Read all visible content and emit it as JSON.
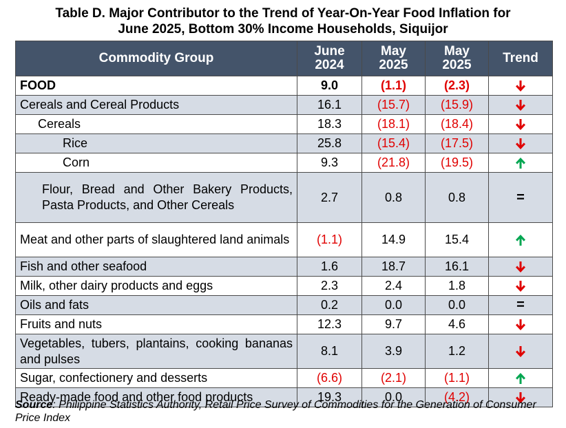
{
  "title_line1": "Table D. Major Contributor to the Trend of Year-On-Year Food Inflation for",
  "title_line2": "June 2025, Bottom 30% Income Households, Siquijor",
  "headers": {
    "group": "Commodity Group",
    "c1_line1": "June",
    "c1_line2": "2024",
    "c2_line1": "May",
    "c2_line2": "2025",
    "c3_line1": "May",
    "c3_line2": "2025",
    "trend": "Trend"
  },
  "rows": [
    {
      "label": "FOOD",
      "v1": "9.0",
      "v2": "(1.1)",
      "v3": "(2.3)",
      "trend": "down"
    },
    {
      "label": "Cereals and Cereal Products",
      "v1": "16.1",
      "v2": "(15.7)",
      "v3": "(15.9)",
      "trend": "down"
    },
    {
      "label": "Cereals",
      "v1": "18.3",
      "v2": "(18.1)",
      "v3": "(18.4)",
      "trend": "down"
    },
    {
      "label": "Rice",
      "v1": "25.8",
      "v2": "(15.4)",
      "v3": "(17.5)",
      "trend": "down"
    },
    {
      "label": "Corn",
      "v1": "9.3",
      "v2": "(21.8)",
      "v3": "(19.5)",
      "trend": "up"
    },
    {
      "label": "Flour, Bread and Other Bakery Products, Pasta Products, and Other Cereals",
      "v1": "2.7",
      "v2": "0.8",
      "v3": "0.8",
      "trend": "equal",
      "trend_text": "="
    },
    {
      "label": "Meat and other parts of slaughtered land animals",
      "v1": "(1.1)",
      "v2": "14.9",
      "v3": "15.4",
      "trend": "up"
    },
    {
      "label": "Fish and other seafood",
      "v1": "1.6",
      "v2": "18.7",
      "v3": "16.1",
      "trend": "down"
    },
    {
      "label": "Milk, other dairy products and eggs",
      "v1": "2.3",
      "v2": "2.4",
      "v3": "1.8",
      "trend": "down"
    },
    {
      "label": "Oils and fats",
      "v1": "0.2",
      "v2": "0.0",
      "v3": "0.0",
      "trend": "equal",
      "trend_text": "="
    },
    {
      "label": "Fruits and nuts",
      "v1": "12.3",
      "v2": "9.7",
      "v3": "4.6",
      "trend": "down"
    },
    {
      "label": "Vegetables, tubers, plantains, cooking bananas and pulses",
      "v1": "8.1",
      "v2": "3.9",
      "v3": "1.2",
      "trend": "down"
    },
    {
      "label": "Sugar, confectionery and desserts",
      "v1": "(6.6)",
      "v2": "(2.1)",
      "v3": "(1.1)",
      "trend": "up"
    },
    {
      "label": "Ready-made food and other food products",
      "v1": "19.3",
      "v2": "0.0",
      "v3": "(4.2)",
      "trend": "down"
    }
  ],
  "source_label": "Source",
  "source_text": ": Philippine Statistics Authority, Retail Price Survey of Commodities for the Generation of Consumer Price Index",
  "colors": {
    "header_bg": "#44546a",
    "shade": "#d6dce5",
    "negative": "#e00000",
    "arrow_down": "#e00000",
    "arrow_up": "#00a651"
  }
}
